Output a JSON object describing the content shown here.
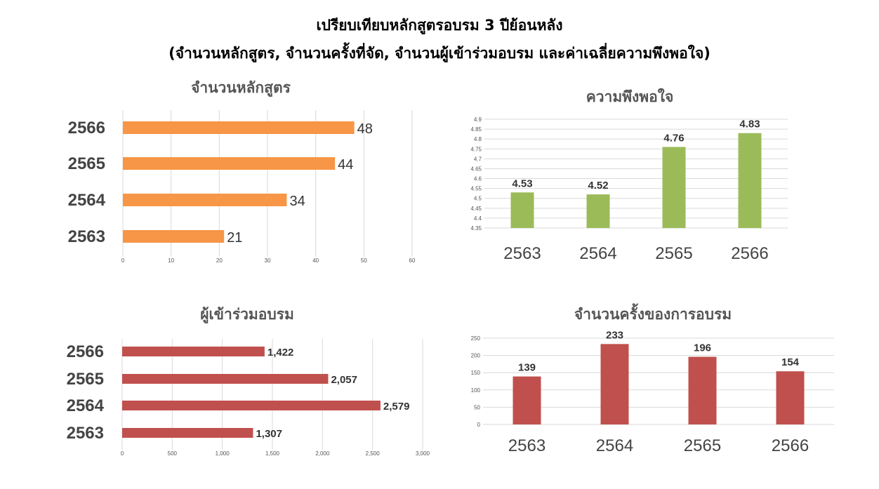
{
  "title": {
    "line1": "เปรียบเทียบหลักสูตรอบรม 3 ปีย้อนหลัง",
    "line2": "(จำนวนหลักสูตร, จำนวนครั้งที่จัด, จำนวนผู้เข้าร่วมอบรม และค่าเฉลี่ยความพึงพอใจ)"
  },
  "chart_data": [
    {
      "id": "courses",
      "type": "bar",
      "orientation": "horizontal",
      "title": "จำนวนหลักสูตร",
      "categories": [
        "2566",
        "2565",
        "2564",
        "2563"
      ],
      "values": [
        48,
        44,
        34,
        21
      ],
      "labels": [
        "48",
        "44",
        "34",
        "21"
      ],
      "xlim": [
        0,
        60
      ],
      "ticks": [
        "0",
        "10",
        "20",
        "30",
        "40",
        "50",
        "60"
      ],
      "color": "#F79646",
      "grid": true
    },
    {
      "id": "satisfaction",
      "type": "bar",
      "orientation": "vertical",
      "title": "ความพึงพอใจ",
      "categories": [
        "2563",
        "2564",
        "2565",
        "2566"
      ],
      "values": [
        4.53,
        4.52,
        4.76,
        4.83
      ],
      "labels": [
        "4.53",
        "4.52",
        "4.76",
        "4.83"
      ],
      "ylim": [
        4.35,
        4.9
      ],
      "ticks": [
        "4.35",
        "4.4",
        "4.45",
        "4.5",
        "4.55",
        "4.6",
        "4.65",
        "4.7",
        "4.75",
        "4.8",
        "4.85",
        "4.9"
      ],
      "color": "#9BBB59",
      "grid": true
    },
    {
      "id": "participants",
      "type": "bar",
      "orientation": "horizontal",
      "title": "ผู้เข้าร่วมอบรม",
      "categories": [
        "2566",
        "2565",
        "2564",
        "2563"
      ],
      "values": [
        1422,
        2057,
        2579,
        1307
      ],
      "labels": [
        "1,422",
        "2,057",
        "2,579",
        "1,307"
      ],
      "xlim": [
        0,
        3000
      ],
      "ticks": [
        "0",
        "500",
        "1,000",
        "1,500",
        "2,000",
        "2,500",
        "3,000"
      ],
      "color": "#C0504D",
      "grid": true
    },
    {
      "id": "sessions",
      "type": "bar",
      "orientation": "vertical",
      "title": "จำนวนครั้งของการอบรม",
      "categories": [
        "2563",
        "2564",
        "2565",
        "2566"
      ],
      "values": [
        139,
        233,
        196,
        154
      ],
      "labels": [
        "139",
        "233",
        "196",
        "154"
      ],
      "ylim": [
        0,
        250
      ],
      "ticks": [
        "0",
        "50",
        "100",
        "150",
        "200",
        "250"
      ],
      "color": "#C0504D",
      "grid": true
    }
  ]
}
